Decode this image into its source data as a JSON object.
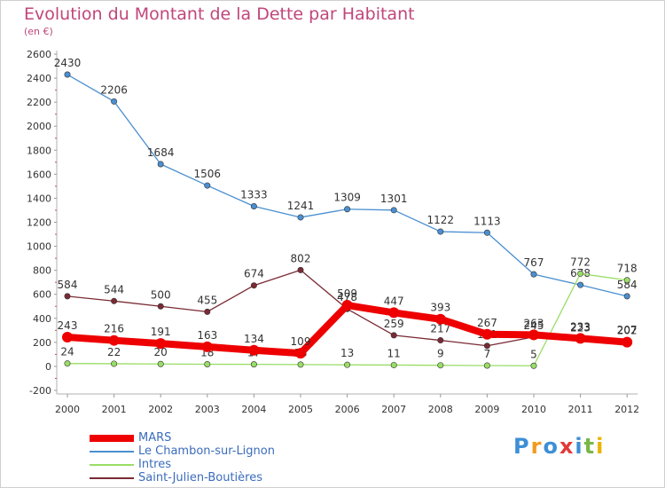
{
  "title": "Evolution du Montant de la Dette par Habitant",
  "unit_label": "(en €)",
  "logo_text": "Proxiti",
  "chart_data": {
    "type": "line",
    "title": "Evolution du Montant de la Dette par Habitant",
    "subtitle": "(en €)",
    "x": [
      "2000",
      "2001",
      "2002",
      "2003",
      "2004",
      "2005",
      "2006",
      "2007",
      "2008",
      "2009",
      "2010",
      "2011",
      "2012"
    ],
    "y_ticks": [
      "-200",
      "0",
      "200",
      "400",
      "600",
      "800",
      "1000",
      "1200",
      "1400",
      "1600",
      "1800",
      "2000",
      "2200",
      "2400",
      "2600"
    ],
    "ylim": [
      -200,
      2600
    ],
    "grid": false,
    "legend_position": "bottom-left",
    "series": [
      {
        "name": "MARS",
        "color": "#ee0000",
        "emphasis": true,
        "values": [
          243,
          216,
          191,
          163,
          134,
          109,
          509,
          447,
          393,
          267,
          263,
          233,
          202
        ],
        "labels": [
          "243",
          "216",
          "191",
          "163",
          "134",
          "109",
          "509",
          "447",
          "393",
          "267",
          "263",
          "233",
          "202"
        ]
      },
      {
        "name": "Le Chambon-sur-Lignon",
        "color": "#4a8fd0",
        "values": [
          2430,
          2206,
          1684,
          1506,
          1333,
          1241,
          1309,
          1301,
          1122,
          1113,
          767,
          678,
          584
        ],
        "labels": [
          "2430",
          "2206",
          "1684",
          "1506",
          "1333",
          "1241",
          "1309",
          "1301",
          "1122",
          "1113",
          "767",
          "678",
          "584"
        ]
      },
      {
        "name": "Intres",
        "color": "#99dd66",
        "values": [
          24,
          22,
          20,
          18,
          17,
          15,
          13,
          11,
          9,
          7,
          5,
          772,
          718
        ],
        "labels": [
          "24",
          "22",
          "20",
          "18",
          "17",
          "15",
          "13",
          "11",
          "9",
          "7",
          "5",
          "772",
          "718"
        ]
      },
      {
        "name": "Saint-Julien-Boutières",
        "color": "#7a2a34",
        "values": [
          584,
          544,
          500,
          455,
          674,
          802,
          478,
          259,
          217,
          171,
          245,
          223,
          207
        ],
        "labels": [
          "584",
          "544",
          "500",
          "455",
          "674",
          "802",
          "478",
          "259",
          "217",
          "171",
          "245",
          "223",
          "207"
        ]
      }
    ]
  }
}
